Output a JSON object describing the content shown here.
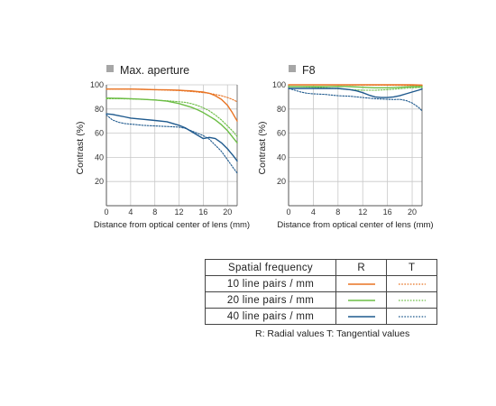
{
  "colors": {
    "f10": "#e87424",
    "f20": "#6cbd45",
    "f40": "#1f5a8e",
    "axis": "#555555",
    "grid": "#c8c8c8",
    "title_square": "#a6a6a6"
  },
  "chart_data": [
    {
      "type": "line",
      "title": "Max. aperture",
      "xlabel": "Distance from optical center of lens (mm)",
      "ylabel": "Contrast (%)",
      "xlim": [
        0,
        21.6
      ],
      "ylim": [
        0,
        100
      ],
      "xticks": [
        "0",
        "4",
        "8",
        "12",
        "16",
        "20"
      ],
      "yticks": [
        "20",
        "40",
        "60",
        "80",
        "100"
      ],
      "grid": true,
      "series": [
        {
          "freq": "10",
          "style": "R",
          "x": [
            0,
            2,
            4,
            6,
            8,
            10,
            12,
            13,
            14,
            15,
            16,
            17,
            18,
            19,
            20,
            20.8,
            21.6
          ],
          "y": [
            96.5,
            96.5,
            96.5,
            96.3,
            96,
            95.8,
            95.5,
            95.2,
            95,
            94.5,
            94,
            93,
            91,
            88,
            83,
            77,
            70
          ]
        },
        {
          "freq": "10",
          "style": "T",
          "x": [
            0,
            2,
            4,
            6,
            8,
            10,
            12,
            14,
            15,
            16,
            17,
            18,
            19,
            20,
            20.8,
            21.6
          ],
          "y": [
            96.5,
            96.5,
            96.5,
            96.2,
            96,
            95.6,
            95.2,
            94.5,
            94,
            93.5,
            93,
            92,
            91,
            89.5,
            88,
            86
          ]
        },
        {
          "freq": "20",
          "style": "R",
          "x": [
            0,
            2,
            4,
            6,
            8,
            10,
            11,
            12,
            13,
            14,
            15,
            16,
            17,
            18,
            19,
            20,
            20.8,
            21.6
          ],
          "y": [
            89,
            88.8,
            88.5,
            88,
            87.5,
            86.5,
            85.5,
            84.5,
            83,
            81.5,
            79.5,
            77,
            74,
            71,
            67,
            62,
            57,
            52
          ]
        },
        {
          "freq": "20",
          "style": "T",
          "x": [
            0,
            2,
            4,
            6,
            8,
            10,
            12,
            13,
            14,
            15,
            16,
            17,
            18,
            19,
            20,
            21,
            21.6
          ],
          "y": [
            88.5,
            88.5,
            88.3,
            88,
            87.5,
            86.8,
            86,
            85.5,
            84.5,
            83,
            81,
            78.5,
            75,
            71,
            66,
            61,
            57
          ]
        },
        {
          "freq": "40",
          "style": "R",
          "x": [
            0,
            1,
            2,
            3,
            4,
            6,
            8,
            10,
            11,
            12,
            13,
            14,
            15,
            16,
            17,
            18,
            19,
            20,
            21,
            21.6
          ],
          "y": [
            76,
            75.5,
            74.5,
            73.5,
            72.5,
            71.5,
            70.5,
            69.5,
            68,
            66.5,
            64.5,
            61.5,
            58.5,
            55.5,
            56.5,
            55.5,
            52,
            47,
            41,
            37
          ]
        },
        {
          "freq": "40",
          "style": "T",
          "x": [
            0,
            1,
            2,
            3,
            4,
            5,
            6,
            8,
            10,
            12,
            13,
            14,
            15,
            16,
            17,
            18,
            19,
            20,
            21,
            21.6
          ],
          "y": [
            75,
            71,
            69,
            68,
            67.5,
            67,
            66.5,
            66,
            65.5,
            65,
            64,
            62,
            60,
            58,
            55,
            50,
            45,
            38,
            31,
            27
          ]
        }
      ]
    },
    {
      "type": "line",
      "title": "F8",
      "xlabel": "Distance from optical center of lens (mm)",
      "ylabel": "Contrast (%)",
      "xlim": [
        0,
        21.6
      ],
      "ylim": [
        0,
        100
      ],
      "xticks": [
        "0",
        "4",
        "8",
        "12",
        "16",
        "20"
      ],
      "yticks": [
        "20",
        "40",
        "60",
        "80",
        "100"
      ],
      "grid": true,
      "series": [
        {
          "freq": "10",
          "style": "R",
          "x": [
            0,
            4,
            8,
            12,
            16,
            20,
            21.6
          ],
          "y": [
            100,
            100,
            100,
            100,
            100,
            100,
            99.8
          ]
        },
        {
          "freq": "10",
          "style": "T",
          "x": [
            0,
            4,
            8,
            12,
            16,
            20,
            21.6
          ],
          "y": [
            100,
            100,
            100,
            99.8,
            99.7,
            99.5,
            99.3
          ]
        },
        {
          "freq": "20",
          "style": "R",
          "x": [
            0,
            2,
            4,
            6,
            8,
            10,
            12,
            14,
            16,
            18,
            20,
            21.6
          ],
          "y": [
            98.5,
            98.5,
            98.5,
            98.6,
            98.7,
            98.5,
            98,
            97.5,
            97.5,
            98,
            98.5,
            98.5
          ]
        },
        {
          "freq": "20",
          "style": "T",
          "x": [
            0,
            2,
            4,
            6,
            8,
            10,
            12,
            14,
            16,
            18,
            20,
            21.6
          ],
          "y": [
            98.5,
            98.5,
            98,
            97.5,
            96.8,
            96,
            95.5,
            95.5,
            96,
            96.8,
            97.5,
            97.8
          ]
        },
        {
          "freq": "40",
          "style": "R",
          "x": [
            0,
            2,
            4,
            6,
            8,
            10,
            11,
            12,
            13,
            14,
            15,
            16,
            17,
            18,
            19,
            20,
            21,
            21.6
          ],
          "y": [
            97,
            97,
            97,
            97,
            97,
            96,
            95,
            93.5,
            91.5,
            90,
            89.5,
            89.5,
            90,
            91,
            92.5,
            94,
            95.5,
            96.5
          ]
        },
        {
          "freq": "40",
          "style": "T",
          "x": [
            0,
            1,
            2,
            3,
            4,
            5,
            6,
            7,
            8,
            10,
            12,
            14,
            16,
            17,
            18,
            19,
            20,
            21,
            21.6
          ],
          "y": [
            97,
            95.5,
            94,
            93,
            92.5,
            92.3,
            92,
            91.5,
            91,
            90.5,
            89.5,
            88.5,
            88,
            87.8,
            88,
            87,
            85,
            81.5,
            78.5
          ]
        }
      ]
    }
  ],
  "legend": {
    "header": {
      "label": "Spatial frequency",
      "r": "R",
      "t": "T"
    },
    "rows": [
      {
        "label": "10 line pairs / mm",
        "color_key": "f10"
      },
      {
        "label": "20 line pairs / mm",
        "color_key": "f20"
      },
      {
        "label": "40 line pairs / mm",
        "color_key": "f40"
      }
    ],
    "footnote": "R: Radial values  T: Tangential values"
  }
}
